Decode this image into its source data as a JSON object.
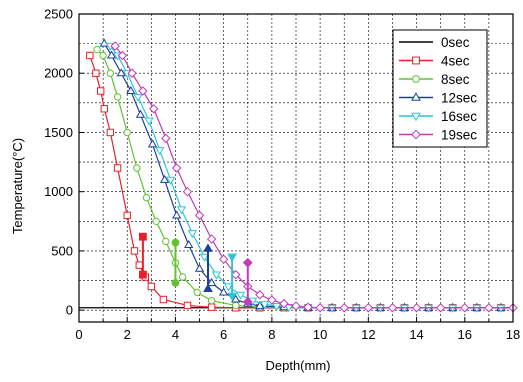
{
  "chart_data": {
    "type": "line",
    "xlabel": "Depth(mm)",
    "ylabel": "Temperature(°C)",
    "xlim": [
      0,
      18
    ],
    "ylim": [
      -100,
      2500
    ],
    "xticks": [
      0,
      2,
      4,
      6,
      8,
      10,
      12,
      14,
      16,
      18
    ],
    "yticks": [
      0,
      500,
      1000,
      1500,
      2000,
      2500
    ],
    "grid": true,
    "legend_position": "top-right",
    "series": [
      {
        "name": "0sec",
        "color": "#000000",
        "marker": "none",
        "x": [
          0,
          18
        ],
        "y": [
          20,
          20
        ]
      },
      {
        "name": "4sec",
        "color": "#e8202a",
        "marker": "square",
        "x": [
          0.45,
          0.7,
          0.9,
          1.05,
          1.3,
          1.6,
          2.0,
          2.3,
          2.5,
          2.75,
          3.0,
          3.5,
          4.5,
          5.5,
          6.5,
          7.5,
          8.5,
          9.5,
          10.5,
          11.5,
          12.5,
          13.5,
          14.5,
          15.5,
          16.5,
          17.5
        ],
        "y": [
          2150,
          2000,
          1850,
          1700,
          1500,
          1200,
          800,
          500,
          380,
          280,
          200,
          90,
          40,
          25,
          20,
          20,
          20,
          20,
          20,
          20,
          20,
          20,
          20,
          20,
          20,
          20
        ]
      },
      {
        "name": "8sec",
        "color": "#62c232",
        "marker": "circle",
        "x": [
          0.75,
          1.0,
          1.3,
          1.6,
          2.0,
          2.4,
          2.8,
          3.2,
          3.6,
          4.0,
          4.3,
          4.9,
          5.5,
          6.5,
          7.5,
          8.5,
          9.5,
          10.5,
          11.5,
          12.5,
          13.5,
          14.5,
          15.5,
          16.5,
          17.5
        ],
        "y": [
          2200,
          2150,
          2000,
          1800,
          1500,
          1200,
          950,
          750,
          580,
          400,
          280,
          150,
          80,
          40,
          25,
          20,
          20,
          20,
          20,
          20,
          20,
          20,
          20,
          20,
          20
        ]
      },
      {
        "name": "12sec",
        "color": "#1d3f9e",
        "marker": "triangle",
        "x": [
          1.05,
          1.35,
          1.75,
          2.15,
          2.55,
          3.05,
          3.55,
          4.05,
          4.55,
          5.0,
          5.5,
          6.0,
          6.5,
          7.0,
          7.5,
          8.5,
          9.5,
          10.5,
          11.5,
          12.5,
          13.5,
          14.5,
          15.5,
          16.5,
          17.5
        ],
        "y": [
          2250,
          2150,
          2000,
          1850,
          1650,
          1400,
          1100,
          800,
          550,
          350,
          230,
          150,
          90,
          55,
          35,
          25,
          20,
          20,
          20,
          20,
          20,
          20,
          20,
          20,
          20
        ]
      },
      {
        "name": "16sec",
        "color": "#2ec6d6",
        "marker": "triangle-down",
        "x": [
          1.3,
          1.6,
          2.0,
          2.45,
          2.9,
          3.35,
          3.8,
          4.25,
          4.7,
          5.2,
          5.7,
          6.2,
          6.7,
          7.2,
          7.7,
          8.2,
          8.7,
          9.5,
          10.5,
          11.5,
          12.5,
          13.5,
          14.5,
          15.5,
          16.5,
          17.5
        ],
        "y": [
          2230,
          2150,
          2000,
          1800,
          1600,
          1350,
          1100,
          850,
          650,
          450,
          300,
          200,
          130,
          80,
          50,
          35,
          25,
          20,
          20,
          20,
          20,
          20,
          20,
          20,
          20,
          20
        ]
      },
      {
        "name": "19sec",
        "color": "#c33bb5",
        "marker": "diamond",
        "x": [
          1.5,
          1.8,
          2.2,
          2.65,
          3.1,
          3.6,
          4.05,
          4.5,
          5.0,
          5.5,
          6.0,
          6.5,
          7.0,
          7.5,
          8.0,
          8.5,
          9.0,
          9.5,
          10.0,
          11.0,
          12.0,
          13.0,
          14.0,
          15.0,
          16.0,
          17.0,
          18.0
        ],
        "y": [
          2230,
          2150,
          2000,
          1850,
          1700,
          1450,
          1200,
          1000,
          800,
          600,
          430,
          300,
          200,
          130,
          85,
          55,
          35,
          25,
          20,
          20,
          20,
          20,
          20,
          20,
          20,
          20,
          20
        ]
      }
    ],
    "annotations": [
      {
        "color": "#e8202a",
        "marker": "square",
        "x": 2.65,
        "y_top": 620,
        "y_bottom": 300
      },
      {
        "color": "#62c232",
        "marker": "circle",
        "x": 4.0,
        "y_top": 570,
        "y_bottom": 230
      },
      {
        "color": "#1d3f9e",
        "marker": "triangle",
        "x": 5.35,
        "y_top": 520,
        "y_bottom": 180
      },
      {
        "color": "#2ec6d6",
        "marker": "triangle-down",
        "x": 6.35,
        "y_top": 450,
        "y_bottom": 120
      },
      {
        "color": "#c33bb5",
        "marker": "diamond",
        "x": 7.0,
        "y_top": 400,
        "y_bottom": 70
      }
    ]
  }
}
